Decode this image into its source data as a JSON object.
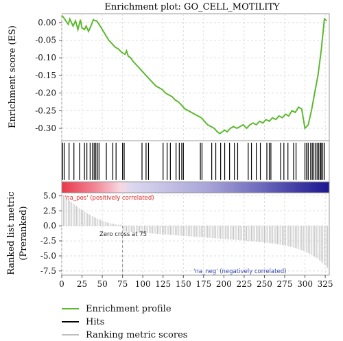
{
  "chart_data": {
    "type": "line",
    "title": "Enrichment plot: GO_CELL_MOTILITY",
    "es_panel": {
      "ylabel": "Enrichment score (ES)",
      "yticks": [
        "0.00",
        "-0.05",
        "-0.10",
        "-0.15",
        "-0.20",
        "-0.25",
        "-0.30"
      ],
      "ylim": [
        -0.335,
        0.025
      ],
      "series": [
        {
          "name": "Enrichment profile",
          "x": [
            0,
            2,
            5,
            8,
            10,
            14,
            17,
            20,
            23,
            25,
            28,
            30,
            33,
            36,
            39,
            41,
            43,
            46,
            50,
            54,
            58,
            62,
            66,
            70,
            74,
            78,
            80,
            82,
            85,
            88,
            92,
            96,
            100,
            104,
            108,
            112,
            116,
            120,
            124,
            128,
            132,
            136,
            140,
            144,
            148,
            152,
            156,
            160,
            164,
            168,
            172,
            176,
            180,
            184,
            188,
            192,
            195,
            198,
            201,
            204,
            208,
            212,
            216,
            220,
            224,
            228,
            232,
            236,
            240,
            244,
            248,
            252,
            256,
            260,
            264,
            268,
            272,
            276,
            280,
            284,
            288,
            292,
            296,
            300,
            304,
            308,
            312,
            316,
            320,
            324,
            327
          ],
          "y": [
            0.02,
            0.015,
            0.005,
            -0.005,
            0.01,
            -0.01,
            0.005,
            -0.02,
            0.008,
            -0.015,
            -0.02,
            -0.01,
            -0.025,
            -0.01,
            0.008,
            0.005,
            0.005,
            -0.005,
            -0.02,
            -0.035,
            -0.05,
            -0.06,
            -0.07,
            -0.075,
            -0.085,
            -0.09,
            -0.08,
            -0.095,
            -0.1,
            -0.11,
            -0.12,
            -0.13,
            -0.14,
            -0.15,
            -0.16,
            -0.17,
            -0.18,
            -0.185,
            -0.19,
            -0.2,
            -0.205,
            -0.21,
            -0.22,
            -0.225,
            -0.235,
            -0.245,
            -0.25,
            -0.255,
            -0.26,
            -0.265,
            -0.27,
            -0.28,
            -0.29,
            -0.295,
            -0.3,
            -0.31,
            -0.315,
            -0.31,
            -0.305,
            -0.31,
            -0.3,
            -0.295,
            -0.3,
            -0.295,
            -0.29,
            -0.3,
            -0.29,
            -0.285,
            -0.29,
            -0.28,
            -0.285,
            -0.275,
            -0.28,
            -0.27,
            -0.275,
            -0.265,
            -0.27,
            -0.26,
            -0.265,
            -0.25,
            -0.255,
            -0.24,
            -0.245,
            -0.3,
            -0.29,
            -0.25,
            -0.2,
            -0.15,
            -0.08,
            0.01,
            0.005
          ]
        }
      ]
    },
    "hits": [
      1,
      3,
      9,
      15,
      22,
      28,
      31,
      35,
      38,
      40,
      42,
      44,
      46,
      55,
      63,
      67,
      75,
      77,
      99,
      104,
      107,
      125,
      130,
      134,
      141,
      145,
      148,
      150,
      171,
      173,
      185,
      190,
      196,
      201,
      207,
      213,
      217,
      230,
      234,
      240,
      245,
      253,
      256,
      258,
      270,
      274,
      279,
      286,
      289,
      300,
      302,
      304,
      307,
      309,
      311,
      313,
      315,
      317,
      319,
      320,
      322,
      324
    ],
    "rank_panel": {
      "ylabel": "Ranked list metric\n(Preranked)",
      "yticks": [
        "5.0",
        "2.5",
        "0.0",
        "-2.5",
        "-5.0",
        "-7.5"
      ],
      "ylim": [
        -8.2,
        5.5
      ],
      "zero_cross_label": "Zero cross at 75",
      "zero_cross": 75,
      "pos_label": "'na_pos' (positively correlated)",
      "neg_label": "'na_neg' (negatively correlated)",
      "n": 330
    },
    "xticks": [
      "0",
      "25",
      "50",
      "75",
      "100",
      "125",
      "150",
      "175",
      "200",
      "225",
      "250",
      "275",
      "300",
      "325"
    ],
    "xlim": [
      0,
      330
    ],
    "legend": [
      {
        "label": "Enrichment profile",
        "color": "#5cb82e"
      },
      {
        "label": "Hits",
        "color": "#000000"
      },
      {
        "label": "Ranking metric scores",
        "color": "#bfbfbf"
      }
    ],
    "grid": true
  },
  "colors": {
    "profile": "#5cb82e",
    "hits": "#000000",
    "ranking": "#bfbfbf",
    "pos_label": "#dd2222",
    "neg_label": "#3344aa"
  }
}
